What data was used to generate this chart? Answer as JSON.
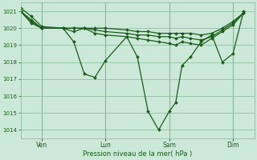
{
  "background_color": "#cce8d8",
  "grid_color": "#88b898",
  "line_color": "#1a5c1a",
  "marker_color": "#1a5c1a",
  "tick_label_color": "#1a5c1a",
  "xlabel": "Pression niveau de la mer( hPa )",
  "xlabel_color": "#1a5c1a",
  "ylim": [
    1013.5,
    1021.5
  ],
  "yticks": [
    1014,
    1015,
    1016,
    1017,
    1018,
    1019,
    1020,
    1021
  ],
  "xtick_labels": [
    "Ven",
    "Lun",
    "Sam",
    "Dim"
  ],
  "xtick_positions": [
    1,
    4,
    7,
    10
  ],
  "xlim": [
    0,
    11
  ],
  "series": [
    {
      "x": [
        0,
        0.5,
        1,
        2,
        2.5,
        3,
        3.5,
        4,
        5,
        5.5,
        6,
        6.5,
        7,
        7.3,
        7.6,
        8,
        8.5,
        9,
        9.5,
        10,
        10.5
      ],
      "y": [
        1021.2,
        1020.7,
        1020.1,
        1020.0,
        1019.2,
        1017.3,
        1017.1,
        1018.1,
        1019.5,
        1018.3,
        1015.1,
        1014.0,
        1015.1,
        1015.6,
        1017.8,
        1018.3,
        1019.2,
        1019.6,
        1018.0,
        1018.5,
        1021.0
      ]
    },
    {
      "x": [
        0,
        0.5,
        1,
        2,
        2.5,
        3,
        3.5,
        4,
        5,
        5.5,
        6,
        6.5,
        7,
        7.3,
        7.6,
        8,
        8.5,
        9,
        9.5,
        10,
        10.5
      ],
      "y": [
        1021.0,
        1020.5,
        1020.0,
        1020.0,
        1019.8,
        1020.0,
        1019.7,
        1019.6,
        1019.5,
        1019.4,
        1019.3,
        1019.2,
        1019.1,
        1019.0,
        1019.2,
        1019.1,
        1019.0,
        1019.4,
        1019.8,
        1020.2,
        1020.9
      ]
    },
    {
      "x": [
        0,
        0.5,
        1,
        2,
        2.5,
        3,
        3.5,
        4,
        5,
        5.5,
        6,
        6.5,
        7,
        7.3,
        7.6,
        8,
        8.5,
        9,
        9.5,
        10,
        10.5
      ],
      "y": [
        1021.0,
        1020.4,
        1020.0,
        1020.0,
        1020.0,
        1020.0,
        1019.9,
        1019.8,
        1019.7,
        1019.6,
        1019.6,
        1019.5,
        1019.5,
        1019.4,
        1019.5,
        1019.4,
        1019.3,
        1019.5,
        1019.9,
        1020.3,
        1020.9
      ]
    },
    {
      "x": [
        0,
        0.5,
        1,
        2,
        2.5,
        3,
        3.5,
        4,
        5,
        5.5,
        6,
        6.5,
        7,
        7.3,
        7.6,
        8,
        8.5,
        9,
        9.5,
        10,
        10.5
      ],
      "y": [
        1021.0,
        1020.3,
        1020.0,
        1020.0,
        1020.0,
        1020.0,
        1020.0,
        1020.0,
        1019.9,
        1019.8,
        1019.8,
        1019.7,
        1019.7,
        1019.7,
        1019.7,
        1019.7,
        1019.6,
        1019.7,
        1020.0,
        1020.4,
        1020.9
      ]
    }
  ]
}
